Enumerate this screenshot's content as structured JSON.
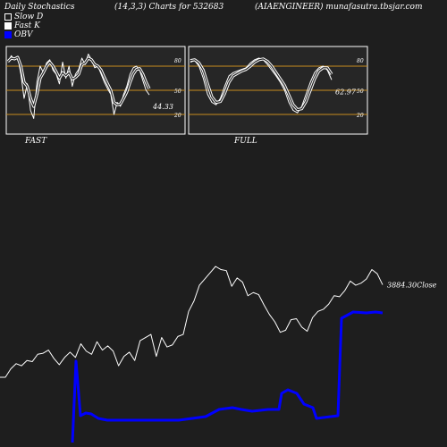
{
  "header": {
    "left": "Daily Stochastics",
    "center": "(14,3,3) Charts for 532683",
    "right": "(AIAENGINEER) munafasutra.tbsjar.com"
  },
  "legend": [
    {
      "label": "Slow  D",
      "style": "hollow"
    },
    {
      "label": "Fast K",
      "style": "filled"
    },
    {
      "label": "OBV",
      "style": "blue"
    }
  ],
  "colors": {
    "background": "#1e1e1e",
    "panel": "#262626",
    "level_line": "#c88c1e",
    "line": "#ffffff",
    "obv": "#0000ff"
  },
  "chart_data": [
    {
      "type": "line",
      "title": "FAST",
      "ylim": [
        0,
        100
      ],
      "levels": [
        80,
        50,
        20
      ],
      "level_labels": [
        "80",
        "50",
        "20"
      ],
      "last_value_label": "44.33",
      "series": [
        {
          "role": "fast_k",
          "values": [
            85,
            93,
            88,
            92,
            70,
            40,
            58,
            25,
            15,
            60,
            80,
            72,
            84,
            88,
            75,
            70,
            58,
            85,
            65,
            80,
            55,
            70,
            76,
            90,
            82,
            95,
            88,
            78,
            80,
            70,
            60,
            52,
            45,
            20,
            35,
            30,
            45,
            55,
            70,
            78,
            80,
            75,
            62,
            50,
            44.33
          ]
        },
        {
          "role": "slow_d",
          "values": [
            86,
            90,
            89,
            91,
            80,
            60,
            55,
            40,
            30,
            45,
            65,
            72,
            80,
            85,
            80,
            73,
            65,
            72,
            68,
            72,
            64,
            66,
            70,
            82,
            84,
            90,
            88,
            82,
            80,
            75,
            66,
            58,
            50,
            35,
            32,
            33,
            40,
            48,
            60,
            70,
            76,
            77,
            70,
            60,
            52
          ]
        }
      ]
    },
    {
      "type": "line",
      "title": "FULL",
      "ylim": [
        0,
        100
      ],
      "levels": [
        80,
        50,
        20
      ],
      "level_labels": [
        "80",
        "50",
        "20"
      ],
      "last_value_label": "62.97",
      "series": [
        {
          "role": "fast_k",
          "values": [
            85,
            87,
            80,
            65,
            45,
            35,
            32,
            40,
            55,
            68,
            72,
            74,
            76,
            78,
            84,
            88,
            90,
            88,
            82,
            75,
            68,
            60,
            50,
            35,
            25,
            22,
            30,
            45,
            60,
            72,
            78,
            80,
            75,
            62.97
          ]
        },
        {
          "role": "slow_d",
          "values": [
            87,
            88,
            84,
            75,
            58,
            42,
            35,
            36,
            46,
            60,
            68,
            71,
            74,
            76,
            80,
            85,
            88,
            89,
            86,
            80,
            72,
            64,
            56,
            44,
            32,
            26,
            27,
            36,
            50,
            64,
            74,
            78,
            78,
            70
          ]
        }
      ]
    },
    {
      "type": "line",
      "title": "",
      "series": [
        {
          "role": "close",
          "values": [
            3000,
            3000,
            3080,
            3130,
            3110,
            3160,
            3150,
            3220,
            3230,
            3260,
            3180,
            3120,
            3190,
            3240,
            3190,
            3320,
            3250,
            3220,
            3340,
            3260,
            3300,
            3250,
            3110,
            3200,
            3240,
            3160,
            3350,
            3380,
            3410,
            3200,
            3380,
            3290,
            3310,
            3390,
            3410,
            3630,
            3730,
            3880,
            3940,
            4000,
            4060,
            4030,
            4020,
            3870,
            3950,
            3910,
            3780,
            3810,
            3790,
            3690,
            3600,
            3530,
            3430,
            3450,
            3550,
            3560,
            3480,
            3440,
            3570,
            3630,
            3650,
            3700,
            3780,
            3770,
            3830,
            3920,
            3880,
            3900,
            3940,
            4030,
            3990,
            3884.3
          ]
        },
        {
          "role": "obv",
          "values": [
            0,
            0,
            0,
            0,
            0,
            0,
            0,
            0,
            0,
            0,
            0,
            0,
            0,
            0,
            0,
            0,
            0,
            0,
            0,
            0,
            0,
            0,
            0,
            0,
            0,
            0,
            0,
            0,
            0,
            0,
            0,
            0,
            0,
            0,
            0,
            0,
            0,
            0,
            0,
            0,
            0,
            0,
            0,
            0,
            0,
            0,
            0,
            0,
            0,
            0,
            0,
            0,
            0,
            0,
            0,
            0,
            0,
            0,
            0,
            0,
            0,
            0,
            0,
            0,
            0,
            0,
            0,
            0,
            0,
            0,
            0,
            0
          ]
        }
      ],
      "last_value_label": "3884.30Close"
    }
  ]
}
